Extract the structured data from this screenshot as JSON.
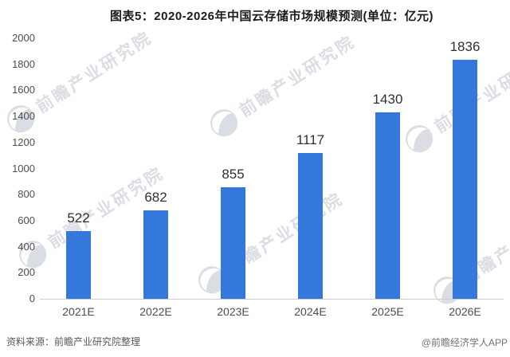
{
  "chart_data": {
    "type": "bar",
    "title": "图表5：2020-2026年中国云存储市场规模预测(单位：亿元)",
    "categories": [
      "2021E",
      "2022E",
      "2023E",
      "2024E",
      "2025E",
      "2026E"
    ],
    "values": [
      522,
      682,
      855,
      1117,
      1430,
      1836
    ],
    "xlabel": "",
    "ylabel": "",
    "ylim": [
      0,
      2000
    ],
    "ytick_step": 200,
    "grid": false,
    "legend": "none",
    "bar_color": "#3478db",
    "value_label_color": "#303030",
    "axis_line_color": "#cfcfcf"
  },
  "footer": {
    "source": "资料来源：前瞻产业研究院整理",
    "credit": "@前瞻经济学人APP"
  },
  "watermark": {
    "text": "前瞻产业研究院",
    "logo": "qianzhan-globe-logo",
    "color": "#d4d8df"
  }
}
